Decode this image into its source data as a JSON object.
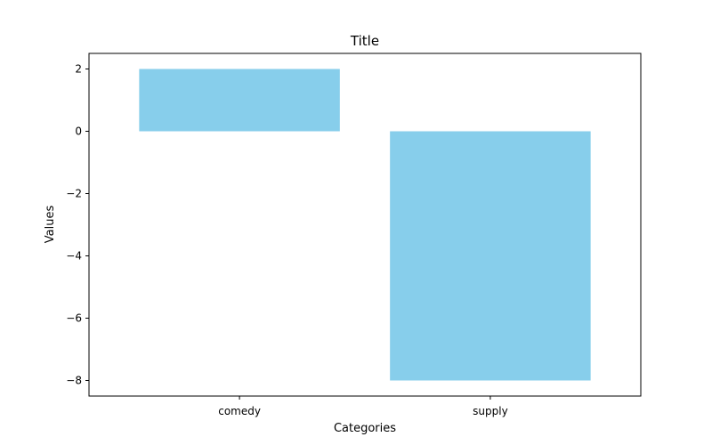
{
  "chart_data": {
    "type": "bar",
    "title": "Title",
    "xlabel": "Categories",
    "ylabel": "Values",
    "categories": [
      "comedy",
      "supply"
    ],
    "values": [
      2,
      -8
    ],
    "ylim": [
      -8.5,
      2.5
    ],
    "yticks": [
      2,
      0,
      -2,
      -4,
      -6,
      -8
    ],
    "ytick_labels": [
      "2",
      "0",
      "−2",
      "−4",
      "−6",
      "−8"
    ],
    "bar_color": "#87ceeb",
    "grid": false,
    "legend": "none"
  }
}
